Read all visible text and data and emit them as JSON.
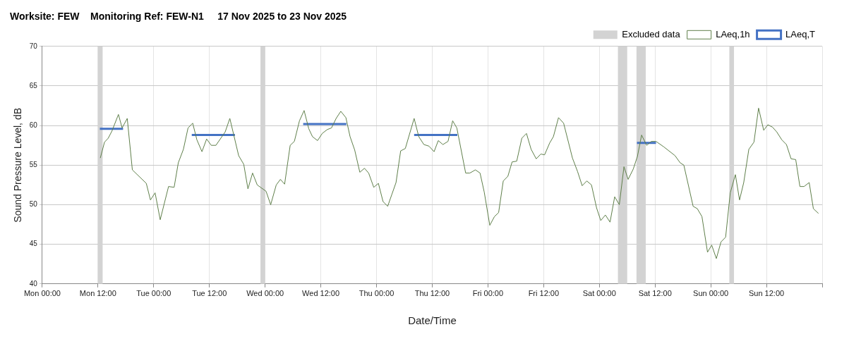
{
  "chart_data": {
    "type": "line",
    "title": "Worksite: FEW    Monitoring Ref: FEW-N1     17 Nov 2025 to 23 Nov 2025",
    "xlabel": "Date/Time",
    "ylabel": "Sound Pressure Level, dB",
    "xlim": [
      "2025-11-17T00:00",
      "2025-11-24T00:00"
    ],
    "xticks": [
      {
        "value": "2025-11-17T00:00",
        "label": "Mon 00:00"
      },
      {
        "value": "2025-11-17T12:00",
        "label": "Mon 12:00"
      },
      {
        "value": "2025-11-18T00:00",
        "label": "Tue 00:00"
      },
      {
        "value": "2025-11-18T12:00",
        "label": "Tue 12:00"
      },
      {
        "value": "2025-11-19T00:00",
        "label": "Wed 00:00"
      },
      {
        "value": "2025-11-19T12:00",
        "label": "Wed 12:00"
      },
      {
        "value": "2025-11-20T00:00",
        "label": "Thu 00:00"
      },
      {
        "value": "2025-11-20T12:00",
        "label": "Thu 12:00"
      },
      {
        "value": "2025-11-21T00:00",
        "label": "Fri 00:00"
      },
      {
        "value": "2025-11-21T12:00",
        "label": "Fri 12:00"
      },
      {
        "value": "2025-11-22T00:00",
        "label": "Sat 00:00"
      },
      {
        "value": "2025-11-22T12:00",
        "label": "Sat 12:00"
      },
      {
        "value": "2025-11-23T00:00",
        "label": "Sun 00:00"
      },
      {
        "value": "2025-11-23T12:00",
        "label": "Sun 12:00"
      },
      {
        "value": "2025-11-24T00:00",
        "label": null
      }
    ],
    "ylim": [
      40,
      70
    ],
    "yticks": [
      40,
      45,
      50,
      55,
      60,
      65,
      70
    ],
    "grid": true,
    "legend": "top right",
    "bands": [
      {
        "axis": "x",
        "from": "2025-11-17T12:00",
        "to": "2025-11-17T13:00",
        "label": "Excluded data",
        "color": "#d3d3d3"
      },
      {
        "axis": "x",
        "from": "2025-11-18T23:00",
        "to": "2025-11-19T00:00",
        "color": "#d3d3d3"
      },
      {
        "axis": "x",
        "from": "2025-11-22T04:00",
        "to": "2025-11-22T06:00",
        "color": "#d3d3d3"
      },
      {
        "axis": "x",
        "from": "2025-11-22T08:00",
        "to": "2025-11-22T10:00",
        "color": "#d3d3d3"
      },
      {
        "axis": "x",
        "from": "2025-11-23T04:00",
        "to": "2025-11-23T05:00",
        "color": "#d3d3d3"
      }
    ],
    "series": [
      {
        "name": "LAeq,1h",
        "color": "#5f7f4a",
        "line_style": "solid",
        "marker": "none",
        "x": [
          "2025-11-17T12:30",
          "2025-11-17T13:24",
          "2025-11-17T14:12",
          "2025-11-17T15:00",
          "2025-11-17T16:24",
          "2025-11-17T17:12",
          "2025-11-17T18:18",
          "2025-11-17T19:24",
          "2025-11-17T22:24",
          "2025-11-17T23:18",
          "2025-11-18T00:18",
          "2025-11-18T01:24",
          "2025-11-18T03:12",
          "2025-11-18T04:24",
          "2025-11-18T05:18",
          "2025-11-18T06:24",
          "2025-11-18T07:24",
          "2025-11-18T08:24",
          "2025-11-18T09:18",
          "2025-11-18T10:24",
          "2025-11-18T11:24",
          "2025-11-18T12:24",
          "2025-11-18T13:24",
          "2025-11-18T15:24",
          "2025-11-18T16:24",
          "2025-11-18T18:18",
          "2025-11-18T19:24",
          "2025-11-18T20:18",
          "2025-11-18T21:18",
          "2025-11-18T22:18",
          "2025-11-19T00:12",
          "2025-11-19T01:12",
          "2025-11-19T02:24",
          "2025-11-19T03:18",
          "2025-11-19T04:12",
          "2025-11-19T05:24",
          "2025-11-19T06:18",
          "2025-11-19T07:24",
          "2025-11-19T08:24",
          "2025-11-19T09:24",
          "2025-11-19T10:12",
          "2025-11-19T11:18",
          "2025-11-19T12:18",
          "2025-11-19T13:24",
          "2025-11-19T14:18",
          "2025-11-19T15:18",
          "2025-11-19T16:18",
          "2025-11-19T17:24",
          "2025-11-19T18:18",
          "2025-11-19T19:18",
          "2025-11-19T20:24",
          "2025-11-19T21:24",
          "2025-11-19T22:18",
          "2025-11-19T23:24",
          "2025-11-20T00:24",
          "2025-11-20T01:24",
          "2025-11-20T02:24",
          "2025-11-20T03:18",
          "2025-11-20T04:12",
          "2025-11-20T05:12",
          "2025-11-20T06:12",
          "2025-11-20T08:06",
          "2025-11-20T09:06",
          "2025-11-20T10:12",
          "2025-11-20T11:18",
          "2025-11-20T12:24",
          "2025-11-20T13:18",
          "2025-11-20T14:18",
          "2025-11-20T15:24",
          "2025-11-20T16:24",
          "2025-11-20T17:18",
          "2025-11-20T19:12",
          "2025-11-20T20:06",
          "2025-11-20T21:18",
          "2025-11-20T22:18",
          "2025-11-20T23:12",
          "2025-11-21T00:24",
          "2025-11-21T01:24",
          "2025-11-21T02:18",
          "2025-11-21T03:18",
          "2025-11-21T04:18",
          "2025-11-21T05:12",
          "2025-11-21T06:12",
          "2025-11-21T07:18",
          "2025-11-21T08:18",
          "2025-11-21T09:18",
          "2025-11-21T10:24",
          "2025-11-21T11:24",
          "2025-11-21T12:12",
          "2025-11-21T13:18",
          "2025-11-21T14:06",
          "2025-11-21T15:12",
          "2025-11-21T16:18",
          "2025-11-21T18:12",
          "2025-11-21T19:18",
          "2025-11-21T20:18",
          "2025-11-21T21:18",
          "2025-11-21T22:18",
          "2025-11-21T23:24",
          "2025-11-22T00:18",
          "2025-11-22T01:18",
          "2025-11-22T02:18",
          "2025-11-22T03:18",
          "2025-11-22T04:18",
          "2025-11-22T05:18",
          "2025-11-22T06:12",
          "2025-11-22T07:18",
          "2025-11-22T08:12",
          "2025-11-22T09:06",
          "2025-11-22T10:12",
          "2025-11-22T11:12",
          "2025-11-22T12:12",
          "2025-11-22T13:54",
          "2025-11-22T16:18",
          "2025-11-22T17:24",
          "2025-11-22T18:12",
          "2025-11-22T20:12",
          "2025-11-22T21:06",
          "2025-11-22T22:06",
          "2025-11-22T23:18",
          "2025-11-23T00:12",
          "2025-11-23T01:12",
          "2025-11-23T02:12",
          "2025-11-23T03:12",
          "2025-11-23T04:12",
          "2025-11-23T05:18",
          "2025-11-23T06:12",
          "2025-11-23T07:06",
          "2025-11-23T08:12",
          "2025-11-23T09:18",
          "2025-11-23T10:18",
          "2025-11-23T11:24",
          "2025-11-23T12:18",
          "2025-11-23T13:18",
          "2025-11-23T14:12",
          "2025-11-23T15:18",
          "2025-11-23T16:18",
          "2025-11-23T17:18",
          "2025-11-23T18:18",
          "2025-11-23T19:12",
          "2025-11-23T20:06",
          "2025-11-23T21:12",
          "2025-11-23T22:06",
          "2025-11-23T23:12"
        ],
        "values": [
          55.9,
          57.9,
          58.4,
          59.3,
          61.4,
          59.7,
          60.9,
          54.4,
          52.7,
          50.6,
          51.5,
          48.1,
          52.3,
          52.2,
          55.3,
          57.0,
          59.7,
          60.3,
          58.2,
          56.7,
          58.3,
          57.5,
          57.5,
          59.2,
          60.9,
          56.2,
          55.1,
          52.0,
          54.0,
          52.5,
          51.7,
          50.0,
          52.5,
          53.2,
          52.6,
          57.5,
          58.0,
          60.6,
          61.9,
          59.6,
          58.6,
          58.1,
          59.0,
          59.5,
          59.7,
          60.9,
          61.8,
          61.0,
          58.6,
          56.9,
          54.1,
          54.6,
          54.0,
          52.2,
          52.7,
          50.4,
          49.8,
          51.3,
          52.8,
          56.8,
          57.1,
          60.9,
          58.6,
          57.6,
          57.4,
          56.7,
          58.1,
          57.6,
          58.0,
          60.6,
          59.7,
          54.0,
          54.0,
          54.4,
          54.0,
          51.6,
          47.4,
          48.5,
          49.0,
          53.0,
          53.6,
          55.4,
          55.5,
          58.4,
          59.0,
          57.0,
          55.8,
          56.4,
          56.3,
          57.8,
          58.6,
          61.0,
          60.3,
          55.9,
          54.2,
          52.4,
          53.0,
          52.5,
          49.6,
          48.0,
          48.7,
          47.8,
          51.0,
          50.0,
          54.8,
          53.2,
          54.5,
          56.1,
          58.8,
          57.5,
          58.0,
          58.0,
          57.3,
          56.2,
          55.3,
          55.0,
          49.8,
          49.5,
          48.5,
          44.0,
          44.9,
          43.2,
          45.3,
          45.9,
          51.5,
          53.8,
          50.6,
          52.8,
          57.0,
          57.9,
          62.2,
          59.4,
          60.1,
          59.8,
          59.2,
          58.2,
          57.6,
          55.8,
          55.7,
          52.3,
          52.3,
          52.8,
          49.5,
          48.9
        ]
      },
      {
        "name": "LAeq,T",
        "color": "#4472c4",
        "line_style": "solid",
        "marker": "none",
        "x": [
          "2025-11-17T12:24",
          "2025-11-17T17:24",
          "2025-11-18T01:00",
          "2025-11-18T08:12",
          "2025-11-18T17:30",
          "2025-11-19T02:00",
          "2025-11-19T08:12",
          "2025-11-19T17:30",
          "2025-11-20T03:00",
          "2025-11-20T08:06",
          "2025-11-20T17:24",
          "2025-11-21T14:00",
          "2025-11-22T08:06",
          "2025-11-22T12:12"
        ],
        "values": [
          59.6,
          59.6,
          null,
          58.8,
          58.8,
          null,
          60.2,
          60.2,
          null,
          58.8,
          58.8,
          null,
          57.8,
          57.8
        ]
      }
    ]
  }
}
